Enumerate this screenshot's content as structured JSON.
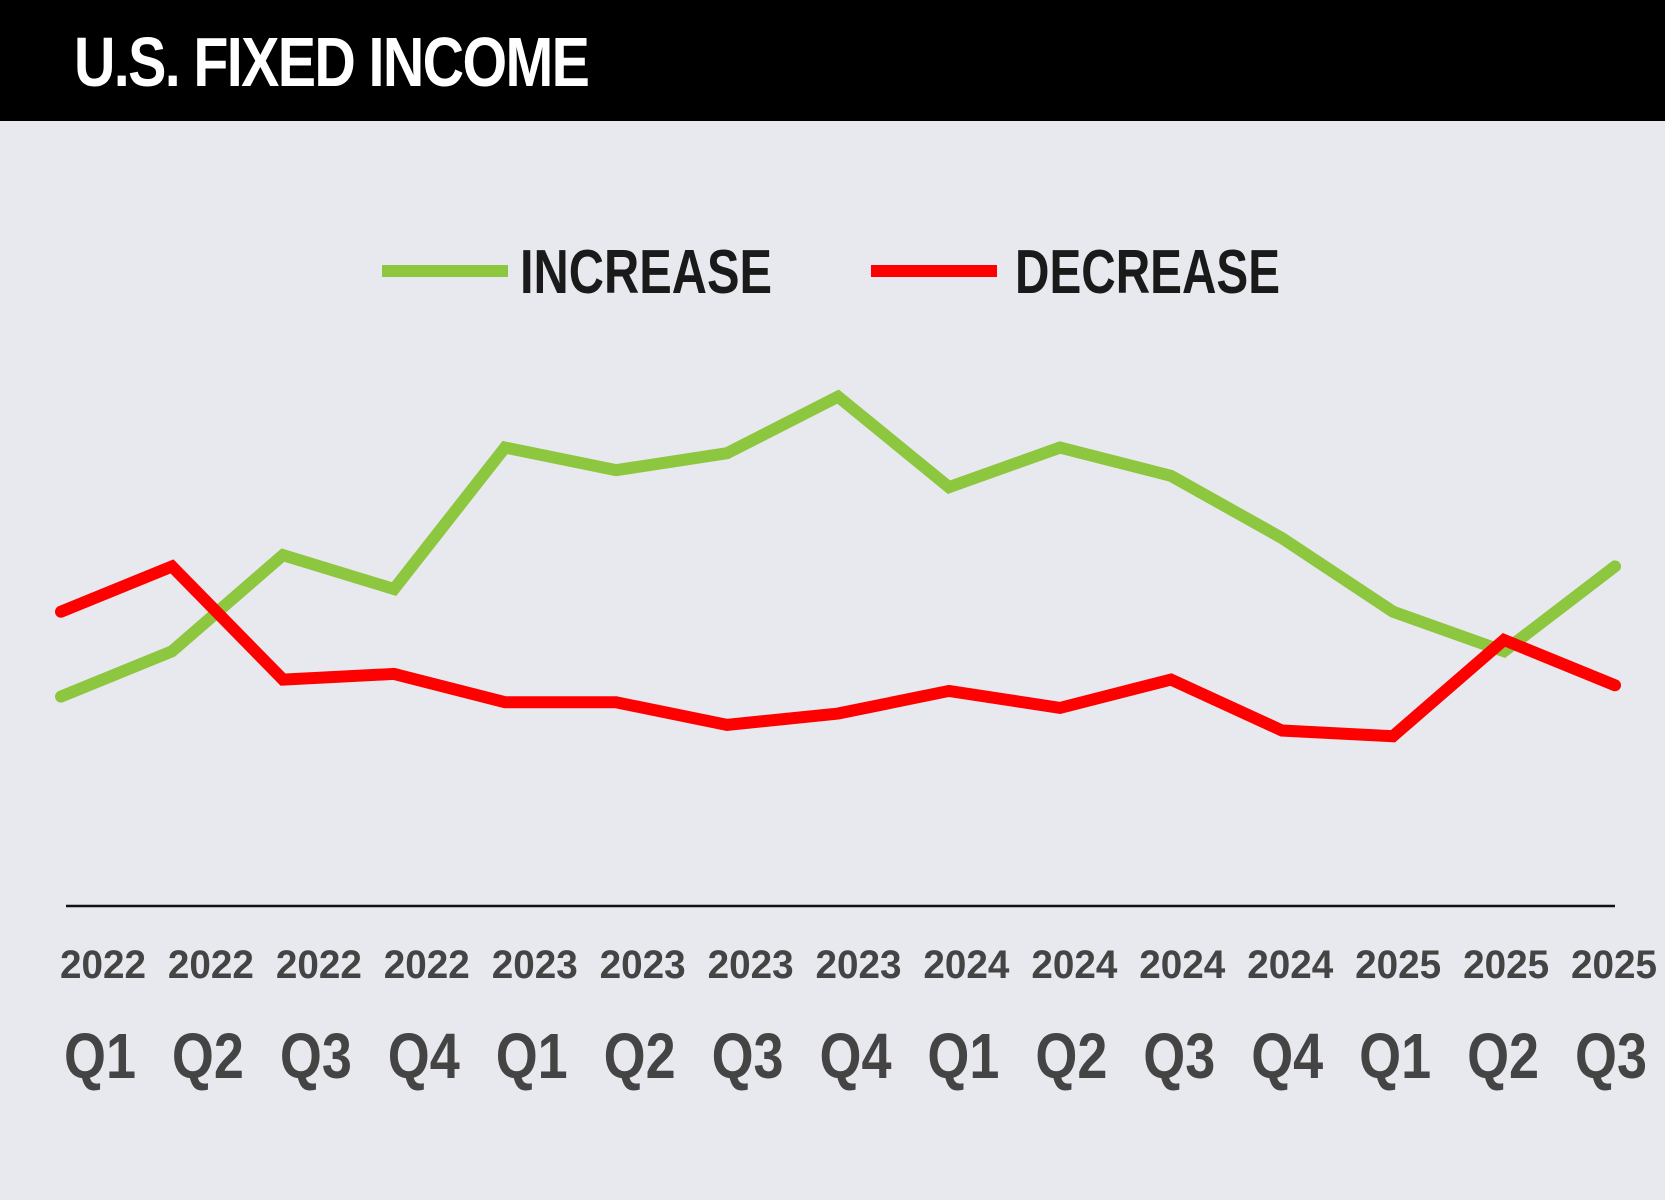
{
  "header": {
    "title": "U.S. FIXED INCOME"
  },
  "chart_data": {
    "type": "line",
    "title": "U.S. FIXED INCOME",
    "xlabel": "",
    "ylabel": "",
    "categories": [
      {
        "year": "2022",
        "quarter": "Q1"
      },
      {
        "year": "2022",
        "quarter": "Q2"
      },
      {
        "year": "2022",
        "quarter": "Q3"
      },
      {
        "year": "2022",
        "quarter": "Q4"
      },
      {
        "year": "2023",
        "quarter": "Q1"
      },
      {
        "year": "2023",
        "quarter": "Q2"
      },
      {
        "year": "2023",
        "quarter": "Q3"
      },
      {
        "year": "2023",
        "quarter": "Q4"
      },
      {
        "year": "2024",
        "quarter": "Q1"
      },
      {
        "year": "2024",
        "quarter": "Q2"
      },
      {
        "year": "2024",
        "quarter": "Q3"
      },
      {
        "year": "2024",
        "quarter": "Q4"
      },
      {
        "year": "2025",
        "quarter": "Q1"
      },
      {
        "year": "2025",
        "quarter": "Q2"
      },
      {
        "year": "2025",
        "quarter": "Q3"
      }
    ],
    "ylim": [
      0,
      100
    ],
    "grid": false,
    "legend_placement": "top-center",
    "series": [
      {
        "name": "INCREASE",
        "color": "#8dc63f",
        "values": [
          37,
          45,
          62,
          56,
          81,
          77,
          80,
          90,
          74,
          81,
          76,
          65,
          52,
          45,
          60
        ]
      },
      {
        "name": "DECREASE",
        "color": "#ff0000",
        "values": [
          52,
          60,
          40,
          41,
          36,
          36,
          32,
          34,
          38,
          35,
          40,
          31,
          30,
          47,
          39
        ]
      }
    ]
  }
}
